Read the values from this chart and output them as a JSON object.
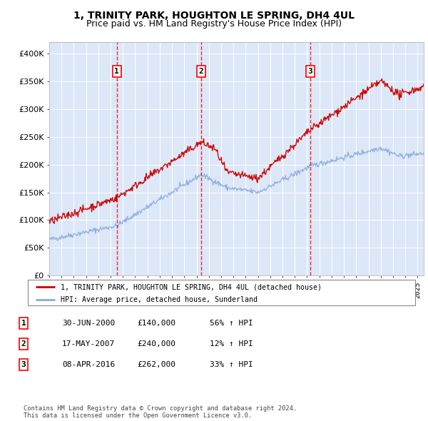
{
  "title": "1, TRINITY PARK, HOUGHTON LE SPRING, DH4 4UL",
  "subtitle": "Price paid vs. HM Land Registry's House Price Index (HPI)",
  "ylabel_ticks": [
    "£0",
    "£50K",
    "£100K",
    "£150K",
    "£200K",
    "£250K",
    "£300K",
    "£350K",
    "£400K"
  ],
  "ytick_values": [
    0,
    50000,
    100000,
    150000,
    200000,
    250000,
    300000,
    350000,
    400000
  ],
  "ylim": [
    0,
    420000
  ],
  "xlim_start": 1995.0,
  "xlim_end": 2025.5,
  "plot_bg_color": "#dce8f8",
  "red_line_color": "#cc0000",
  "blue_line_color": "#88aadd",
  "sale_dates": [
    2000.5,
    2007.375,
    2016.27
  ],
  "sale_prices": [
    140000,
    240000,
    262000
  ],
  "sale_labels": [
    "1",
    "2",
    "3"
  ],
  "legend_red": "1, TRINITY PARK, HOUGHTON LE SPRING, DH4 4UL (detached house)",
  "legend_blue": "HPI: Average price, detached house, Sunderland",
  "table_data": [
    [
      "1",
      "30-JUN-2000",
      "£140,000",
      "56% ↑ HPI"
    ],
    [
      "2",
      "17-MAY-2007",
      "£240,000",
      "12% ↑ HPI"
    ],
    [
      "3",
      "08-APR-2016",
      "£262,000",
      "33% ↑ HPI"
    ]
  ],
  "footer": "Contains HM Land Registry data © Crown copyright and database right 2024.\nThis data is licensed under the Open Government Licence v3.0.",
  "title_fontsize": 10,
  "subtitle_fontsize": 9
}
